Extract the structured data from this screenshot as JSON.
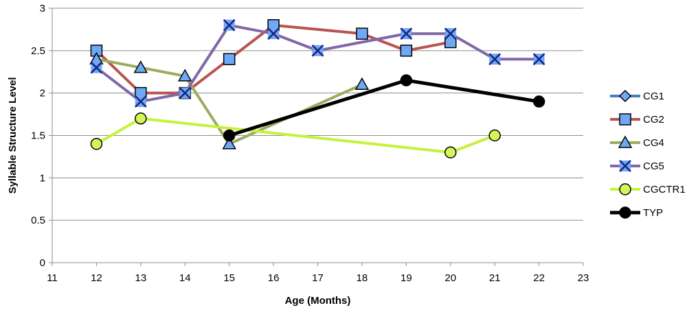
{
  "chart_data": {
    "type": "line",
    "xlabel": "Age (Months)",
    "ylabel": "Syllable Structure Level",
    "xlim": [
      11,
      23
    ],
    "ylim": [
      0,
      3
    ],
    "xticks": [
      11,
      12,
      13,
      14,
      15,
      16,
      17,
      18,
      19,
      20,
      21,
      22,
      23
    ],
    "yticks": [
      0,
      0.5,
      1,
      1.5,
      2,
      2.5,
      3
    ],
    "ytick_labels": [
      "0",
      "0.5",
      "1",
      "1.5",
      "2",
      "2.5",
      "3"
    ],
    "grid": "horizontal",
    "legend_position": "right",
    "series": [
      {
        "name": "CG1",
        "color": "#4a7ebb",
        "marker": "diamond",
        "marker_fill": "#6fa8f5",
        "points": []
      },
      {
        "name": "CG2",
        "color": "#b9534f",
        "marker": "square",
        "marker_fill": "#6fa8f5",
        "points": [
          [
            12,
            2.5
          ],
          [
            13,
            2.0
          ],
          [
            14,
            2.0
          ],
          [
            15,
            2.4
          ],
          [
            16,
            2.8
          ],
          [
            18,
            2.7
          ],
          [
            19,
            2.5
          ],
          [
            20,
            2.6
          ]
        ]
      },
      {
        "name": "CG4",
        "color": "#9bab5f",
        "marker": "triangle",
        "marker_fill": "#6fa8f5",
        "points": [
          [
            12,
            2.4
          ],
          [
            13,
            2.3
          ],
          [
            14,
            2.2
          ],
          [
            15,
            1.4
          ],
          [
            18,
            2.1
          ]
        ]
      },
      {
        "name": "CG5",
        "color": "#8167a9",
        "marker": "x",
        "marker_fill": "#6fa8f5",
        "points": [
          [
            12,
            2.3
          ],
          [
            13,
            1.9
          ],
          [
            14,
            2.0
          ],
          [
            15,
            2.8
          ],
          [
            16,
            2.7
          ],
          [
            17,
            2.5
          ],
          [
            19,
            2.7
          ],
          [
            20,
            2.7
          ],
          [
            21,
            2.4
          ],
          [
            22,
            2.4
          ]
        ]
      },
      {
        "name": "CGCTR1",
        "color": "#c6f23a",
        "marker": "circle",
        "marker_fill": "#d2f55a",
        "points": [
          [
            12,
            1.4
          ],
          [
            13,
            1.7
          ],
          [
            20,
            1.3
          ],
          [
            21,
            1.5
          ]
        ]
      },
      {
        "name": "TYP",
        "color": "#000000",
        "marker": "circle",
        "marker_fill": "#000000",
        "points": [
          [
            15,
            1.5
          ],
          [
            19,
            2.15
          ],
          [
            22,
            1.9
          ]
        ]
      }
    ]
  }
}
